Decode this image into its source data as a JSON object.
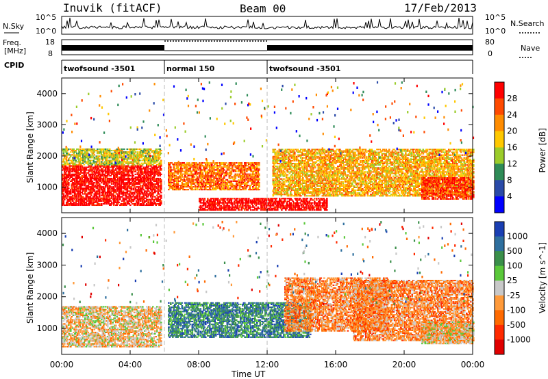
{
  "header": {
    "station": "Inuvik (fitACF)",
    "beam": "Beam 00",
    "date": "17/Feb/2013"
  },
  "top_panels": {
    "nsky_label": "N.Sky",
    "nsky_ticks": [
      "10^5",
      "10^0"
    ],
    "nsearch_label": "N.Search",
    "freq_label_1": "Freq.",
    "freq_label_2": "[MHz]",
    "freq_ticks": [
      "18",
      "8"
    ],
    "nave_ticks": [
      "80",
      "0"
    ],
    "nave_label": "Nave",
    "cpid_label": "CPID",
    "cpid_segments": [
      {
        "label": "twofsound -3501",
        "start_hour": 0,
        "end_hour": 6
      },
      {
        "label": "normal 150",
        "start_hour": 6,
        "end_hour": 12
      },
      {
        "label": "twofsound -3501",
        "start_hour": 12,
        "end_hour": 24
      }
    ]
  },
  "chart_data": [
    {
      "type": "heatmap",
      "title": "",
      "xlabel": "Time UT",
      "ylabel": "Slant Range [km]",
      "xlim": [
        0,
        24
      ],
      "ylim": [
        180,
        4500
      ],
      "x_ticks": [
        "00:00",
        "04:00",
        "08:00",
        "12:00",
        "16:00",
        "20:00",
        "00:00"
      ],
      "y_ticks": [
        1000,
        2000,
        3000,
        4000
      ],
      "colorbar": {
        "label": "Power [dB]",
        "ticks": [
          "28",
          "24",
          "20",
          "16",
          "12",
          "8",
          "4"
        ],
        "colors": [
          "#ff0000",
          "#ff4a00",
          "#ff8c00",
          "#ffc800",
          "#9bcc2a",
          "#2e8b57",
          "#2a4aa8",
          "#0000ff"
        ]
      },
      "regions": [
        {
          "t0": 0.0,
          "t1": 5.8,
          "r0": 400,
          "r1": 1700,
          "level": 0
        },
        {
          "t0": 0.0,
          "t1": 5.8,
          "r0": 1700,
          "r1": 2200,
          "level": 4
        },
        {
          "t0": 6.2,
          "t1": 11.5,
          "r0": 900,
          "r1": 1800,
          "level": 2
        },
        {
          "t0": 8.0,
          "t1": 15.5,
          "r0": 250,
          "r1": 650,
          "level": 0
        },
        {
          "t0": 12.3,
          "t1": 24.0,
          "r0": 700,
          "r1": 2200,
          "level": 3
        },
        {
          "t0": 21.0,
          "t1": 24.0,
          "r0": 600,
          "r1": 1300,
          "level": 1
        }
      ]
    },
    {
      "type": "heatmap",
      "title": "",
      "xlabel": "Time UT",
      "ylabel": "Slant Range [km]",
      "xlim": [
        0,
        24
      ],
      "ylim": [
        180,
        4500
      ],
      "x_ticks": [
        "00:00",
        "04:00",
        "08:00",
        "12:00",
        "16:00",
        "20:00",
        "00:00"
      ],
      "y_ticks": [
        1000,
        2000,
        3000,
        4000
      ],
      "colorbar": {
        "label": "Velocity [m s^-1]",
        "ticks": [
          "1000",
          "500",
          "100",
          "25",
          "-25",
          "-100",
          "-500",
          "-1000"
        ],
        "colors": [
          "#1a3fb3",
          "#2e6f9e",
          "#3a8f4a",
          "#5ac83a",
          "#c8c8c8",
          "#ff9a3a",
          "#ff6a00",
          "#ff2a00",
          "#e00000"
        ]
      },
      "regions": [
        {
          "t0": 0.0,
          "t1": 5.8,
          "r0": 400,
          "r1": 1700,
          "level": 5
        },
        {
          "t0": 6.2,
          "t1": 14.5,
          "r0": 700,
          "r1": 1800,
          "level": 2
        },
        {
          "t0": 13.0,
          "t1": 19.0,
          "r0": 900,
          "r1": 2600,
          "level": 6
        },
        {
          "t0": 17.0,
          "t1": 24.0,
          "r0": 600,
          "r1": 2500,
          "level": 6
        },
        {
          "t0": 21.0,
          "t1": 24.0,
          "r0": 500,
          "r1": 1200,
          "level": 5
        }
      ]
    }
  ]
}
